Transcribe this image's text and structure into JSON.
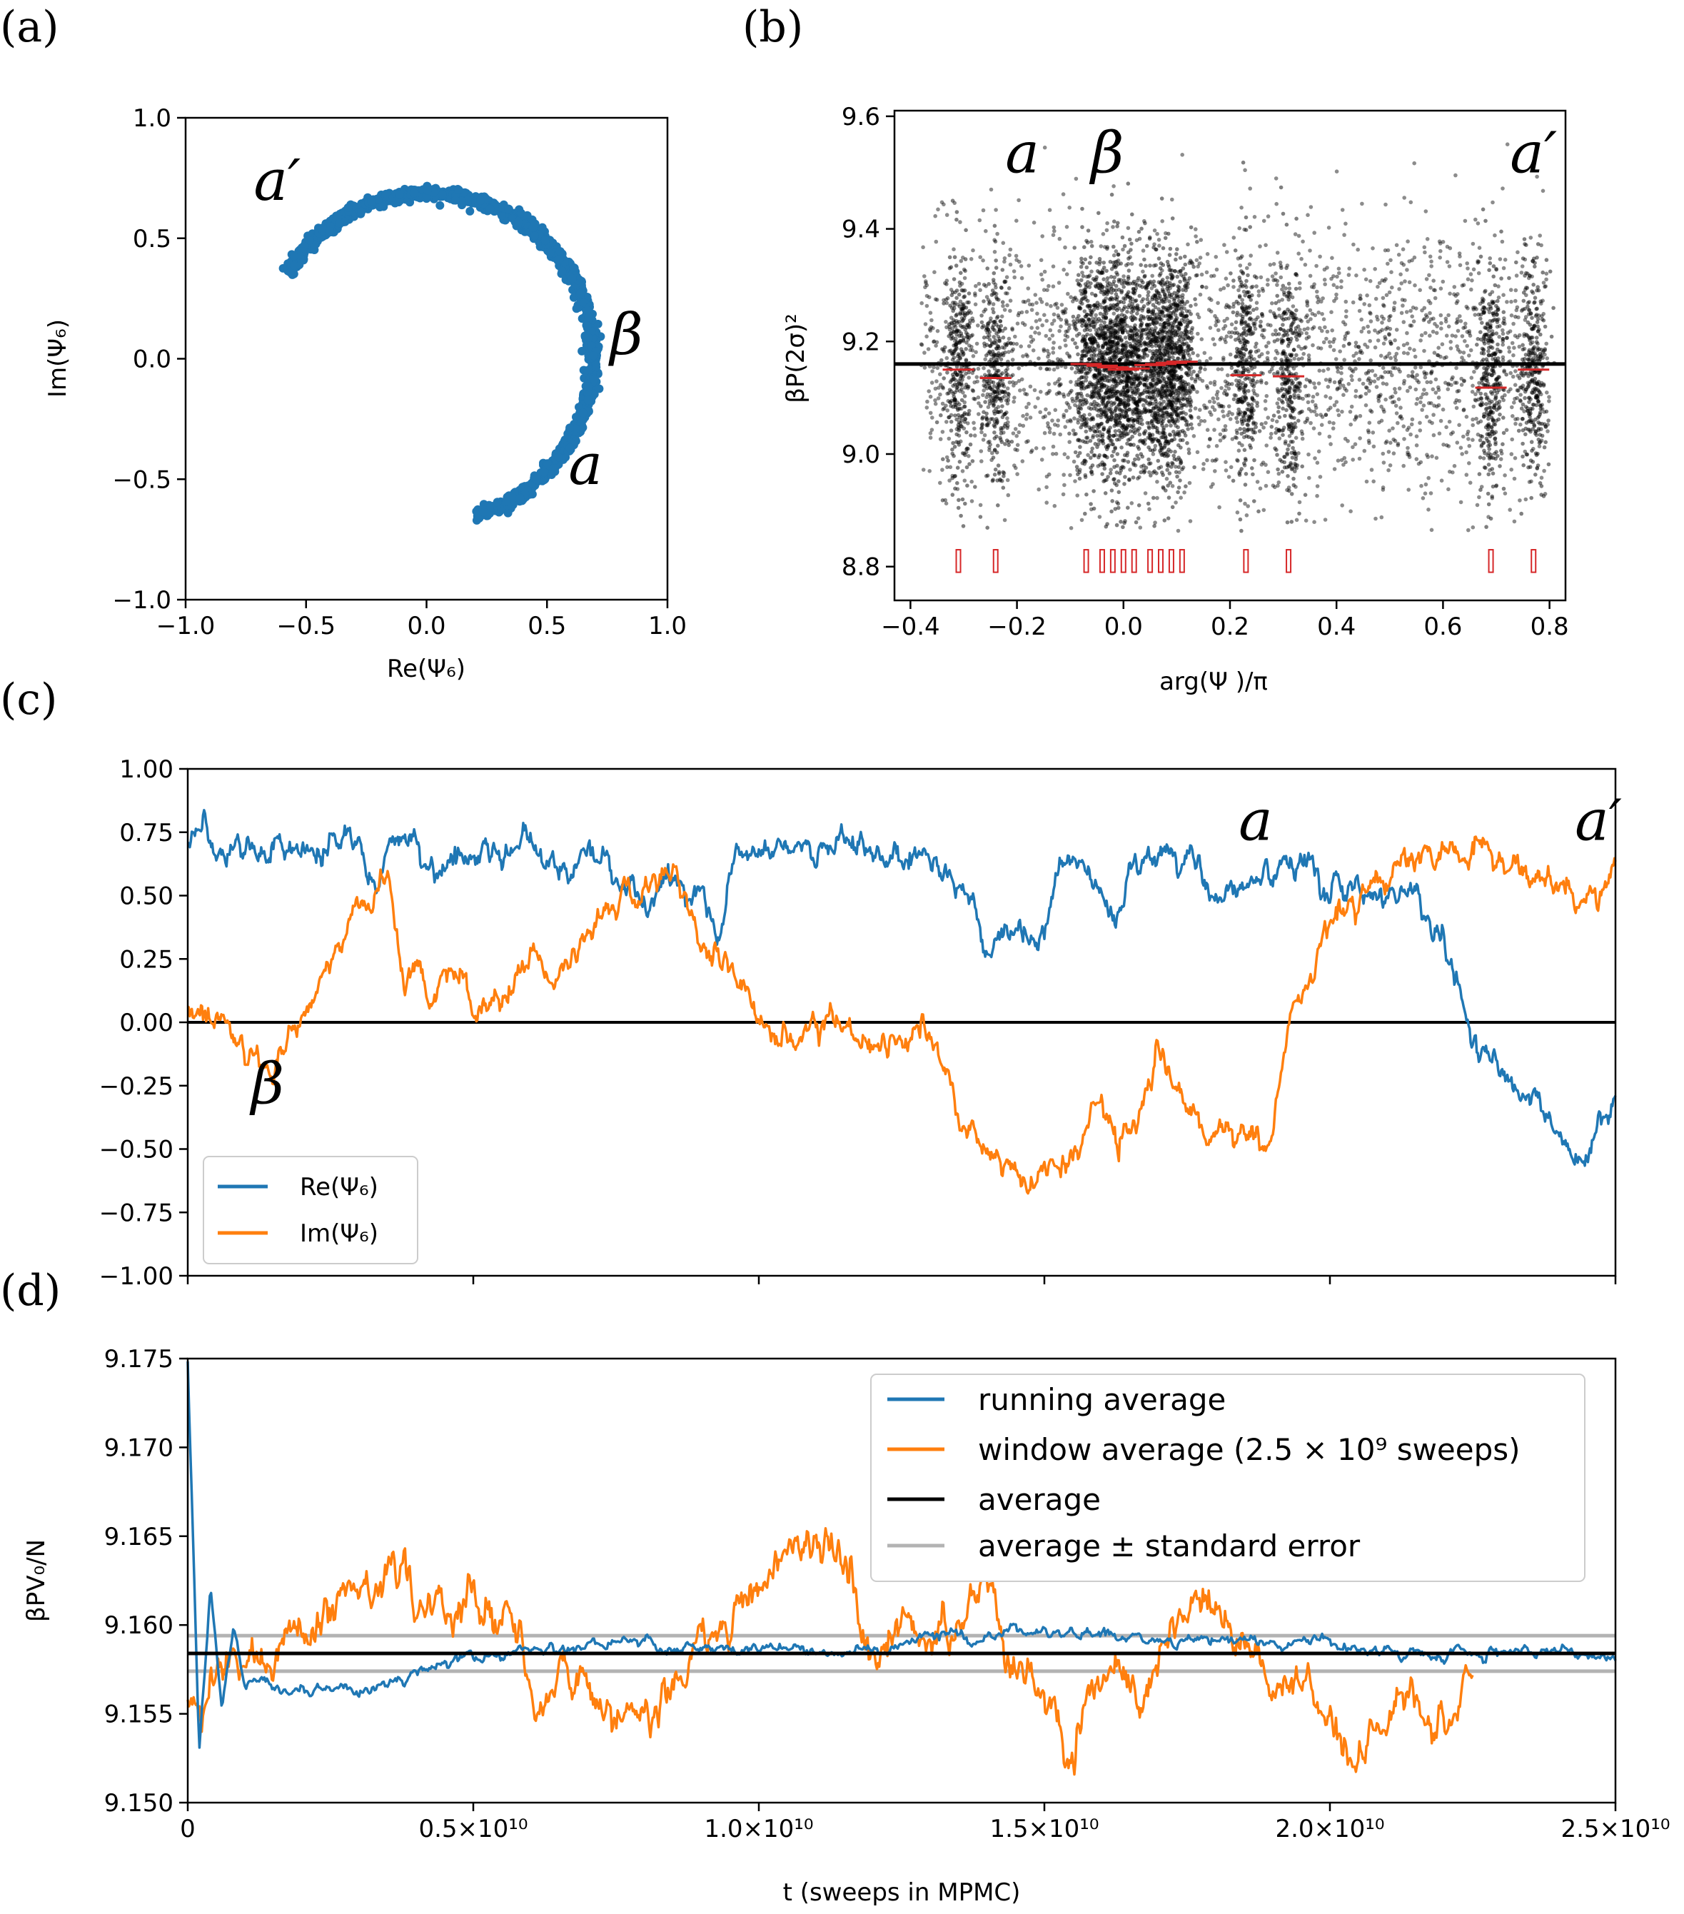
{
  "panel_labels": {
    "a": "(a)",
    "b": "(b)",
    "c": "(c)",
    "d": "(d)"
  },
  "colors": {
    "blue": "#1f77b4",
    "orange": "#ff7f0e",
    "black": "#000000",
    "gray": "#b3b3b3",
    "red": "#d62728"
  },
  "chart_data": [
    {
      "id": "a",
      "type": "scatter",
      "xlabel": "Re(Ψ₆)",
      "ylabel": "Im(Ψ₆)",
      "xlim": [
        -1.0,
        1.0
      ],
      "ylim": [
        -1.0,
        1.0
      ],
      "xticks": [
        "−1.0",
        "−0.5",
        "0.0",
        "0.5",
        "1.0"
      ],
      "yticks": [
        "−1.0",
        "−0.5",
        "0.0",
        "0.5",
        "1.0"
      ],
      "arc": {
        "radius": 0.71,
        "start_angle_deg": -73,
        "end_angle_deg": 148
      },
      "annotations": [
        {
          "text": "a′",
          "x": -0.62,
          "y": 0.66
        },
        {
          "text": "β",
          "x": 0.83,
          "y": 0.02
        },
        {
          "text": "a",
          "x": 0.66,
          "y": -0.52
        }
      ]
    },
    {
      "id": "b",
      "type": "scatter",
      "xlabel": "arg(Ψ   )/π",
      "ylabel": "βP(2σ)²",
      "xlim": [
        -0.43,
        0.83
      ],
      "ylim": [
        8.74,
        9.61
      ],
      "xticks": [
        "−0.4",
        "−0.2",
        "0.0",
        "0.2",
        "0.4",
        "0.6",
        "0.8"
      ],
      "yticks": [
        "8.8",
        "9.0",
        "9.2",
        "9.4",
        "9.6"
      ],
      "average": 9.16,
      "clusters": [
        {
          "x": -0.31,
          "mean": 9.15
        },
        {
          "x": -0.24,
          "mean": 9.135
        },
        {
          "x": -0.07,
          "mean": 9.16
        },
        {
          "x": -0.04,
          "mean": 9.157
        },
        {
          "x": -0.02,
          "mean": 9.154
        },
        {
          "x": 0.0,
          "mean": 9.15
        },
        {
          "x": 0.02,
          "mean": 9.152
        },
        {
          "x": 0.05,
          "mean": 9.158
        },
        {
          "x": 0.07,
          "mean": 9.16
        },
        {
          "x": 0.09,
          "mean": 9.162
        },
        {
          "x": 0.11,
          "mean": 9.164
        },
        {
          "x": 0.23,
          "mean": 9.14
        },
        {
          "x": 0.31,
          "mean": 9.138
        },
        {
          "x": 0.69,
          "mean": 9.118
        },
        {
          "x": 0.77,
          "mean": 9.15
        }
      ],
      "annotations": [
        {
          "text": "a",
          "x": -0.19,
          "y": 9.5
        },
        {
          "text": "β",
          "x": -0.03,
          "y": 9.5
        },
        {
          "text": "a′",
          "x": 0.77,
          "y": 9.5
        }
      ]
    },
    {
      "id": "c",
      "type": "line",
      "xlim": [
        0,
        25000000000.0
      ],
      "ylim": [
        -1.0,
        1.0
      ],
      "yticks": [
        "1.00",
        "0.75",
        "0.50",
        "0.25",
        "0.00",
        "−0.25",
        "−0.50",
        "−0.75",
        "−1.00"
      ],
      "legend": [
        "Re(Ψ₆)",
        "Im(Ψ₆)"
      ],
      "legend_loc": "lower-left",
      "series": [
        {
          "name": "Re(Ψ₆)",
          "x": [
            0,
            0.1,
            0.3,
            0.33,
            0.36,
            0.4,
            0.42,
            0.5,
            0.55,
            0.6,
            0.65,
            0.7,
            0.75,
            0.8,
            0.9,
            0.93,
            0.96,
            1.0,
            1.05,
            1.1,
            1.2,
            1.3,
            1.35,
            1.38,
            1.4,
            1.45,
            1.5,
            1.52,
            1.55,
            1.6,
            1.63,
            1.65,
            1.7,
            1.75,
            1.78,
            1.8,
            1.85,
            1.9,
            1.93,
            1.96,
            2.0,
            2.05,
            2.1,
            2.15,
            2.2,
            2.23,
            2.25,
            2.3,
            2.35,
            2.4,
            2.45,
            2.5
          ],
          "values": [
            0.7,
            0.69,
            0.7,
            0.55,
            0.7,
            0.69,
            0.6,
            0.7,
            0.68,
            0.7,
            0.6,
            0.65,
            0.58,
            0.53,
            0.52,
            0.4,
            0.68,
            0.69,
            0.7,
            0.69,
            0.7,
            0.69,
            0.5,
            0.45,
            0.3,
            0.38,
            0.3,
            0.55,
            0.65,
            0.5,
            0.4,
            0.6,
            0.67,
            0.68,
            0.58,
            0.55,
            0.52,
            0.55,
            0.7,
            0.65,
            0.55,
            0.52,
            0.56,
            0.5,
            0.3,
            0.05,
            -0.1,
            -0.2,
            -0.35,
            -0.45,
            -0.52,
            -0.3
          ]
        },
        {
          "name": "Im(Ψ₆)",
          "x": [
            0,
            0.05,
            0.1,
            0.15,
            0.2,
            0.25,
            0.3,
            0.35,
            0.38,
            0.4,
            0.43,
            0.46,
            0.5,
            0.55,
            0.6,
            0.65,
            0.7,
            0.75,
            0.8,
            0.85,
            0.9,
            0.95,
            1.0,
            1.05,
            1.1,
            1.2,
            1.3,
            1.35,
            1.4,
            1.45,
            1.5,
            1.55,
            1.6,
            1.63,
            1.66,
            1.7,
            1.75,
            1.8,
            1.85,
            1.9,
            1.93,
            1.97,
            2.0,
            2.05,
            2.1,
            2.15,
            2.2,
            2.25,
            2.3,
            2.35,
            2.4,
            2.45,
            2.5
          ],
          "values": [
            0.1,
            0.05,
            -0.1,
            -0.2,
            0.0,
            0.25,
            0.45,
            0.55,
            0.15,
            0.3,
            0.05,
            0.2,
            0.15,
            0.05,
            0.3,
            0.1,
            0.35,
            0.45,
            0.5,
            0.6,
            0.3,
            0.25,
            -0.05,
            -0.1,
            0.0,
            -0.05,
            -0.05,
            -0.4,
            -0.55,
            -0.6,
            -0.6,
            -0.55,
            -0.3,
            -0.5,
            -0.45,
            -0.1,
            -0.35,
            -0.45,
            -0.5,
            -0.45,
            0.0,
            0.2,
            0.45,
            0.5,
            0.55,
            0.65,
            0.68,
            0.7,
            0.65,
            0.6,
            0.55,
            0.5,
            0.6
          ]
        }
      ],
      "annotations": [
        {
          "text": "a",
          "x": 18700000000.0,
          "y": 0.72
        },
        {
          "text": "a′",
          "x": 24700000000.0,
          "y": 0.72
        },
        {
          "text": "β",
          "x": 1400000000.0,
          "y": -0.32
        }
      ]
    },
    {
      "id": "d",
      "type": "line",
      "xlabel": "t (sweeps in MPMC)",
      "ylabel": "βPV₀/N",
      "xlim": [
        0,
        25000000000.0
      ],
      "ylim": [
        9.15,
        9.175
      ],
      "xticks": [
        "0",
        "0.5×10¹⁰",
        "1.0×10¹⁰",
        "1.5×10¹⁰",
        "2.0×10¹⁰",
        "2.5×10¹⁰"
      ],
      "yticks": [
        "9.175",
        "9.170",
        "9.165",
        "9.160",
        "9.155",
        "9.150"
      ],
      "average": 9.1584,
      "std_error": 0.001,
      "legend": [
        "running average",
        "window average (2.5 × 10⁹ sweeps)",
        "average",
        "average ± standard error"
      ],
      "legend_loc": "top-right",
      "series": [
        {
          "name": "running average",
          "x": [
            0,
            0.02,
            0.04,
            0.06,
            0.08,
            0.1,
            0.15,
            0.2,
            0.3,
            0.4,
            0.5,
            0.6,
            0.7,
            0.8,
            0.9,
            1.0,
            1.1,
            1.2,
            1.3,
            1.4,
            1.5,
            1.6,
            1.7,
            1.8,
            1.9,
            2.0,
            2.1,
            2.2,
            2.3,
            2.4,
            2.5
          ],
          "values": [
            9.175,
            9.153,
            9.162,
            9.155,
            9.16,
            9.157,
            9.1565,
            9.1562,
            9.1562,
            9.1572,
            9.158,
            9.1585,
            9.159,
            9.1592,
            9.1588,
            9.1584,
            9.1585,
            9.1588,
            9.1594,
            9.1596,
            9.1595,
            9.1594,
            9.1593,
            9.1592,
            9.1591,
            9.1588,
            9.1586,
            9.1585,
            9.1585,
            9.1584,
            9.1584
          ]
        },
        {
          "name": "window average (2.5 × 10⁹ sweeps)",
          "x": [
            0,
            0.1,
            0.2,
            0.3,
            0.35,
            0.4,
            0.45,
            0.5,
            0.55,
            0.58,
            0.62,
            0.65,
            0.7,
            0.75,
            0.8,
            0.85,
            0.9,
            0.95,
            1.0,
            1.05,
            1.1,
            1.15,
            1.2,
            1.25,
            1.3,
            1.35,
            1.4,
            1.45,
            1.5,
            1.55,
            1.58,
            1.62,
            1.65,
            1.7,
            1.75,
            1.8,
            1.85,
            1.9,
            1.95,
            2.0,
            2.05,
            2.1,
            2.15,
            2.2,
            2.25
          ],
          "values": [
            9.1555,
            9.1575,
            9.16,
            9.1605,
            9.1625,
            9.162,
            9.1615,
            9.1625,
            9.16,
            9.1595,
            9.156,
            9.157,
            9.1565,
            9.1555,
            9.1545,
            9.157,
            9.159,
            9.1605,
            9.1625,
            9.1655,
            9.165,
            9.164,
            9.1595,
            9.16,
            9.1585,
            9.16,
            9.1615,
            9.157,
            9.156,
            9.1525,
            9.156,
            9.1575,
            9.156,
            9.1585,
            9.161,
            9.161,
            9.159,
            9.1575,
            9.156,
            9.154,
            9.153,
            9.155,
            9.156,
            9.1555,
            9.1565
          ]
        }
      ]
    }
  ]
}
